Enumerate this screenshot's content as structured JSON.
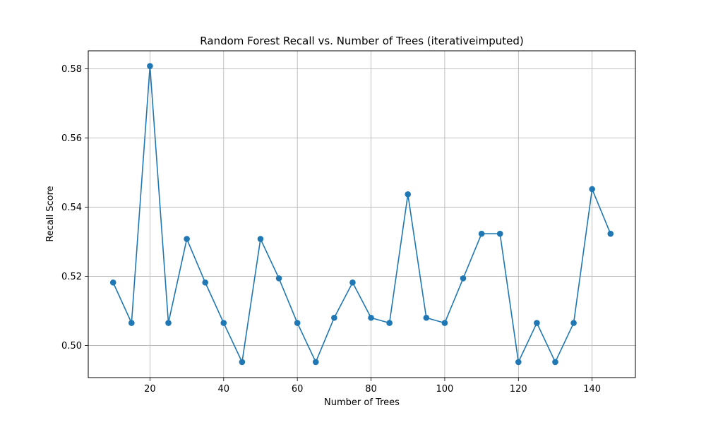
{
  "chart_data": {
    "type": "line",
    "title": "Random Forest Recall vs. Number of Trees (iterativeimputed)",
    "xlabel": "Number of Trees",
    "ylabel": "Recall Score",
    "xlim": [
      3.25,
      151.75
    ],
    "ylim": [
      0.4907,
      0.5852
    ],
    "xticks": [
      20,
      40,
      60,
      80,
      100,
      120,
      140
    ],
    "xtick_labels": [
      "20",
      "40",
      "60",
      "80",
      "100",
      "120",
      "140"
    ],
    "yticks": [
      0.5,
      0.52,
      0.54,
      0.56,
      0.58
    ],
    "ytick_labels": [
      "0.50",
      "0.52",
      "0.54",
      "0.56",
      "0.58"
    ],
    "grid": true,
    "series": [
      {
        "color": "#1f77b4",
        "marker": "circle",
        "x": [
          10,
          15,
          20,
          25,
          30,
          35,
          40,
          45,
          50,
          55,
          60,
          65,
          70,
          75,
          80,
          85,
          90,
          95,
          100,
          105,
          110,
          115,
          120,
          125,
          130,
          135,
          140,
          145
        ],
        "y": [
          0.5182,
          0.5065,
          0.5808,
          0.5065,
          0.5308,
          0.5182,
          0.5065,
          0.4952,
          0.5308,
          0.5194,
          0.5065,
          0.4952,
          0.508,
          0.5182,
          0.508,
          0.5065,
          0.5437,
          0.508,
          0.5065,
          0.5194,
          0.5323,
          0.5323,
          0.4952,
          0.5065,
          0.4952,
          0.5065,
          0.5452,
          0.5323
        ]
      }
    ]
  }
}
